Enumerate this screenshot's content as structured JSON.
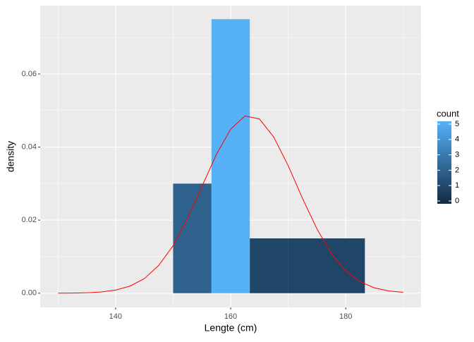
{
  "chart_data": {
    "type": "histogram",
    "x_label": "Lengte (cm)",
    "y_label": "density",
    "bins": [
      150,
      156.67,
      163.33,
      170,
      176.67,
      183.33
    ],
    "values": [
      0.03,
      0.075,
      0.015,
      0.015,
      0.015
    ],
    "counts": [
      2,
      5,
      1,
      1,
      1
    ],
    "fill_low": "#132B43",
    "fill_high": "#56B1F7",
    "legend_title": "count",
    "legend_lim": [
      0,
      5
    ],
    "legend_ticks": [
      0,
      1,
      2,
      3,
      4,
      5
    ],
    "curve": {
      "color": "#ff0000",
      "x": [
        130,
        132.5,
        135,
        137.5,
        140,
        142.5,
        145,
        147.5,
        150,
        152.5,
        155,
        157.5,
        160,
        162.5,
        165,
        167.5,
        170,
        172.5,
        175,
        177.5,
        180,
        182.5,
        185,
        187.5,
        190
      ],
      "values": [
        1e-05,
        4e-05,
        0.00012,
        0.00034,
        0.00085,
        0.00194,
        0.004,
        0.0076,
        0.013,
        0.0204,
        0.0292,
        0.0379,
        0.0449,
        0.0485,
        0.0477,
        0.0427,
        0.0349,
        0.0259,
        0.0176,
        0.0108,
        0.0061,
        0.0031,
        0.00146,
        0.00062,
        0.00024
      ]
    },
    "xlim": [
      126.9,
      193.1
    ],
    "ylim": [
      -0.0039,
      0.0787
    ],
    "xticks": [
      140,
      160,
      180
    ],
    "yticks": [
      {
        "value": 0,
        "label": "0.00"
      },
      {
        "value": 0.02,
        "label": "0.02"
      },
      {
        "value": 0.04,
        "label": "0.04"
      },
      {
        "value": 0.06,
        "label": "0.06"
      }
    ],
    "grid": true
  }
}
